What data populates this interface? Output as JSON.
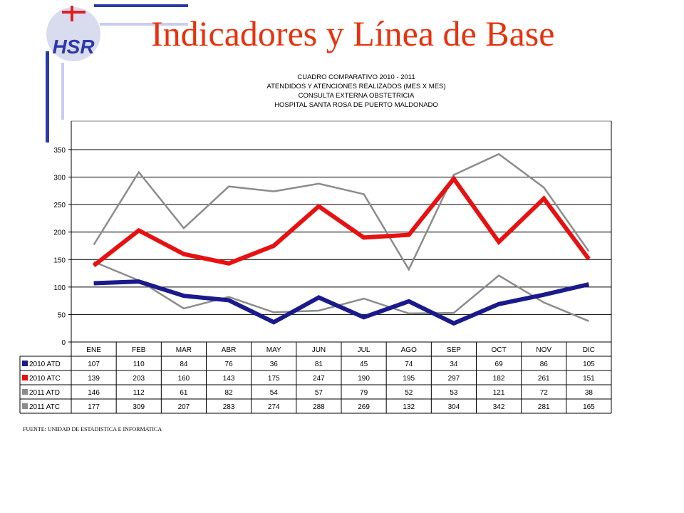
{
  "slide": {
    "title": "Indicadores y Línea de Base",
    "source": "FUENTE: UNIDAD DE ESTADISTICA E INFORMATICA"
  },
  "logo": {
    "text": "HSR",
    "icon": "hospital-cross-logo-icon",
    "colors": {
      "blue": "#2b3aa8",
      "red": "#e02020",
      "circle": "#d9dbef"
    }
  },
  "colors": {
    "title": "#e8320e",
    "frame_blue": "#2b3aa8",
    "frame_light": "#c9cdf0",
    "plot_border": "#808080",
    "gridline": "#000000"
  },
  "chart_data": {
    "type": "line",
    "title_lines": [
      "CUADRO COMPARATIVO 2010 - 2011",
      "ATENDIDOS Y ATENCIONES REALIZADOS (MES X MES)",
      "CONSULTA EXTERNA OBSTETRICIA",
      "HOSPITAL SANTA ROSA DE PUERTO MALDONADO"
    ],
    "categories": [
      "ENE",
      "FEB",
      "MAR",
      "ABR",
      "MAY",
      "JUN",
      "JUL",
      "AGO",
      "SEP",
      "OCT",
      "NOV",
      "DIC"
    ],
    "ylim": [
      0,
      350
    ],
    "yticks": [
      0,
      50,
      100,
      150,
      200,
      250,
      300,
      350
    ],
    "grid": true,
    "data_table": true,
    "series": [
      {
        "name": "2010 ATD",
        "color": "#1a1a8c",
        "width": 6,
        "values": [
          107,
          110,
          84,
          76,
          36,
          81,
          45,
          74,
          34,
          69,
          86,
          105
        ]
      },
      {
        "name": "2010 ATC",
        "color": "#e81010",
        "width": 6,
        "values": [
          139,
          203,
          160,
          143,
          175,
          247,
          190,
          195,
          297,
          182,
          261,
          151
        ]
      },
      {
        "name": "2011 ATD",
        "color": "#8c8c8c",
        "width": 2.5,
        "values": [
          146,
          112,
          61,
          82,
          54,
          57,
          79,
          52,
          53,
          121,
          72,
          38
        ]
      },
      {
        "name": "2011 ATC",
        "color": "#8c8c8c",
        "width": 2.5,
        "values": [
          177,
          309,
          207,
          283,
          274,
          288,
          269,
          132,
          304,
          342,
          281,
          165
        ]
      }
    ]
  }
}
